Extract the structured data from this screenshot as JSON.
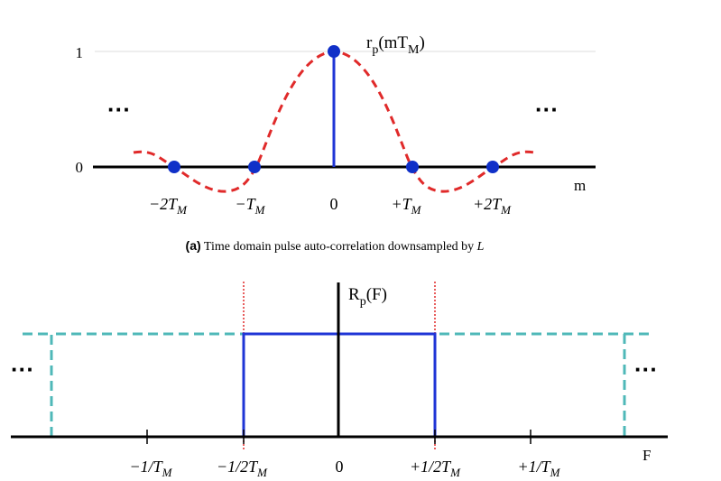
{
  "panel_a": {
    "y_tick_1": "1",
    "y_tick_0": "0",
    "signal_label": "r",
    "signal_label_sub": "p",
    "signal_label_arg": "(mT",
    "signal_label_arg_sub": "M",
    "signal_label_close": ")",
    "x_axis_label": "m",
    "ellipsis_left": "···",
    "ellipsis_right": "···",
    "x_ticks": [
      {
        "main": "−2T",
        "sub": "M"
      },
      {
        "main": "−T",
        "sub": "M"
      },
      {
        "main": "0",
        "sub": ""
      },
      {
        "main": "+T",
        "sub": "M"
      },
      {
        "main": "+2T",
        "sub": "M"
      }
    ],
    "caption_tag": "(a)",
    "caption_text": "Time domain pulse auto-correlation downsampled by ",
    "caption_var": "L"
  },
  "panel_b": {
    "signal_label": "R",
    "signal_label_sub": "p",
    "signal_label_arg": "(F)",
    "x_axis_label": "F",
    "ellipsis_left": "···",
    "ellipsis_right": "···",
    "x_ticks": [
      {
        "main": "−1/T",
        "sub": "M"
      },
      {
        "main": "−1/2T",
        "sub": "M"
      },
      {
        "main": "0",
        "sub": ""
      },
      {
        "main": "+1/2T",
        "sub": "M"
      },
      {
        "main": "+1/T",
        "sub": "M"
      }
    ]
  },
  "colors": {
    "axis": "#000000",
    "stem": "#1f35d6",
    "sample_dot": "#1030c8",
    "sinc_curve": "#e02a2a",
    "rect_spectrum": "#1f35d6",
    "alias_spectrum": "#4fb8b8",
    "band_edge": "#e02a2a",
    "gridline": "#d8d8d8"
  }
}
